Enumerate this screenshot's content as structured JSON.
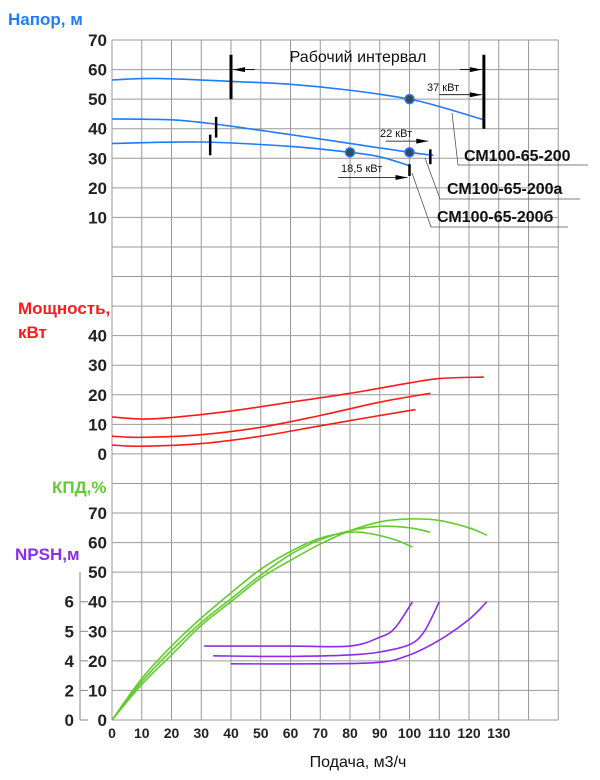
{
  "chart_data": {
    "type": "line",
    "xlabel": "Подача, м3/ч",
    "x_ticks": [
      0,
      10,
      20,
      30,
      40,
      50,
      60,
      70,
      80,
      90,
      100,
      110,
      120,
      130
    ],
    "xlim": [
      0,
      150
    ],
    "grid": true,
    "colors": {
      "head": "#1f7bff",
      "power": "#ff1a1a",
      "efficiency": "#62cc2e",
      "npsh": "#8a2cf0"
    },
    "head": {
      "ylabel": "Напор, м",
      "ticks": [
        10,
        20,
        30,
        40,
        50,
        60,
        70
      ],
      "ylim": [
        0,
        70
      ],
      "series": [
        {
          "name": "СМ100-65-200",
          "points": [
            [
              0,
              56.5
            ],
            [
              15,
              57
            ],
            [
              40,
              56
            ],
            [
              60,
              55
            ],
            [
              80,
              53
            ],
            [
              100,
              50
            ],
            [
              110,
              47.5
            ],
            [
              125,
              43
            ]
          ]
        },
        {
          "name": "СМ100-65-200а",
          "points": [
            [
              0,
              43.3
            ],
            [
              20,
              43
            ],
            [
              35,
              41.5
            ],
            [
              60,
              38
            ],
            [
              80,
              35
            ],
            [
              100,
              32
            ],
            [
              108,
              31
            ]
          ]
        },
        {
          "name": "СМ100-65-200б",
          "points": [
            [
              0,
              35
            ],
            [
              30,
              35.5
            ],
            [
              60,
              34
            ],
            [
              80,
              32
            ],
            [
              90,
              30.5
            ],
            [
              100,
              27.5
            ]
          ]
        }
      ],
      "duty_points": [
        [
          100,
          50
        ],
        [
          100,
          32
        ],
        [
          80,
          32
        ]
      ],
      "interval_title": "Рабочий интервал",
      "interval_bars": [
        {
          "q": 40,
          "h": [
            50,
            65
          ]
        },
        {
          "q": 125,
          "h": [
            40,
            65
          ]
        },
        {
          "q": 35,
          "h": [
            37,
            44
          ]
        },
        {
          "q": 33,
          "h": [
            31,
            38
          ]
        },
        {
          "q": 107,
          "h": [
            28,
            33
          ]
        },
        {
          "q": 100,
          "h": [
            24,
            28
          ]
        }
      ],
      "motor_labels": [
        "37 кВт",
        "22 кВт",
        "18,5 кВт"
      ]
    },
    "power": {
      "ylabel_line1": "Мощность,",
      "ylabel_line2": "кВт",
      "ticks": [
        0,
        10,
        20,
        30,
        40
      ],
      "ylim": [
        0,
        40
      ],
      "series": [
        {
          "points": [
            [
              0,
              12.5
            ],
            [
              10,
              11.8
            ],
            [
              20,
              12.3
            ],
            [
              40,
              14.5
            ],
            [
              60,
              17.5
            ],
            [
              80,
              20.5
            ],
            [
              100,
              24
            ],
            [
              110,
              25.5
            ],
            [
              125,
              26
            ]
          ]
        },
        {
          "points": [
            [
              0,
              6
            ],
            [
              10,
              5.6
            ],
            [
              30,
              6.5
            ],
            [
              50,
              9
            ],
            [
              70,
              13
            ],
            [
              90,
              17.5
            ],
            [
              107,
              20.5
            ]
          ]
        },
        {
          "points": [
            [
              0,
              3
            ],
            [
              10,
              2.6
            ],
            [
              30,
              3.5
            ],
            [
              50,
              6
            ],
            [
              70,
              9.5
            ],
            [
              90,
              13
            ],
            [
              102,
              15
            ]
          ]
        }
      ]
    },
    "efficiency": {
      "ylabel": "КПД,%",
      "ticks": [
        10,
        20,
        30,
        40,
        50,
        60,
        70
      ],
      "ylim": [
        0,
        70
      ],
      "series": [
        {
          "points": [
            [
              0,
              0
            ],
            [
              10,
              12
            ],
            [
              20,
              22
            ],
            [
              30,
              32
            ],
            [
              40,
              40
            ],
            [
              50,
              48
            ],
            [
              60,
              54
            ],
            [
              70,
              59.5
            ],
            [
              80,
              64
            ],
            [
              90,
              67
            ],
            [
              100,
              68
            ],
            [
              110,
              67.5
            ],
            [
              120,
              65
            ],
            [
              126,
              62.5
            ]
          ]
        },
        {
          "points": [
            [
              0,
              0
            ],
            [
              10,
              13
            ],
            [
              20,
              23.5
            ],
            [
              30,
              33
            ],
            [
              40,
              41
            ],
            [
              50,
              49
            ],
            [
              60,
              56
            ],
            [
              70,
              61
            ],
            [
              80,
              64
            ],
            [
              90,
              65.5
            ],
            [
              100,
              65
            ],
            [
              107,
              63.5
            ]
          ]
        },
        {
          "points": [
            [
              0,
              0
            ],
            [
              10,
              14
            ],
            [
              20,
              25
            ],
            [
              30,
              34.5
            ],
            [
              40,
              43
            ],
            [
              50,
              51
            ],
            [
              60,
              57
            ],
            [
              70,
              61.5
            ],
            [
              80,
              63.5
            ],
            [
              87,
              63
            ],
            [
              95,
              61
            ],
            [
              101,
              58.5
            ]
          ]
        }
      ]
    },
    "npsh": {
      "ylabel": "NPSH,м",
      "ticks": [
        0,
        2,
        4,
        5,
        6
      ],
      "series": [
        {
          "points": [
            [
              31,
              4.5
            ],
            [
              60,
              4.5
            ],
            [
              80,
              4.5
            ],
            [
              90,
              4.8
            ],
            [
              95,
              5.1
            ],
            [
              101,
              6
            ]
          ]
        },
        {
          "points": [
            [
              34,
              4.17
            ],
            [
              60,
              4.15
            ],
            [
              80,
              4.2
            ],
            [
              90,
              4.3
            ],
            [
              100,
              4.55
            ],
            [
              105,
              5.0
            ],
            [
              110,
              6
            ]
          ]
        },
        {
          "points": [
            [
              40,
              3.8
            ],
            [
              70,
              3.8
            ],
            [
              90,
              3.9
            ],
            [
              100,
              4.2
            ],
            [
              110,
              4.7
            ],
            [
              120,
              5.4
            ],
            [
              126,
              6
            ]
          ]
        }
      ]
    }
  }
}
